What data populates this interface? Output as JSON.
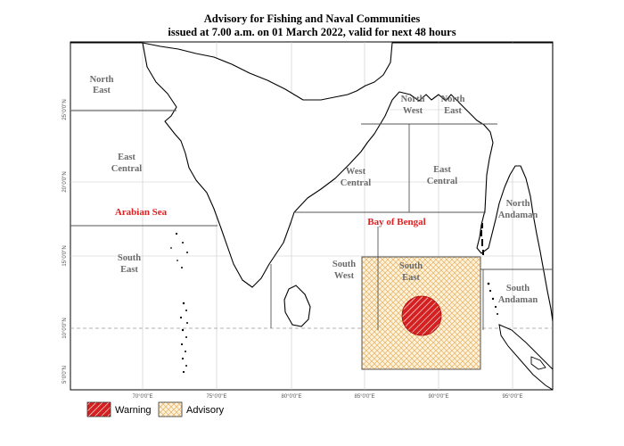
{
  "title": {
    "line1": "Advisory for Fishing and Naval Communities",
    "line2": "issued at 7.00 a.m. on 01 March  2022, valid for next 48 hours"
  },
  "regions": {
    "arabian_north_east": [
      "North",
      "East"
    ],
    "arabian_east_central": [
      "East",
      "Central"
    ],
    "arabian_south_east": [
      "South",
      "East"
    ],
    "bay_north_west": [
      "North",
      "West"
    ],
    "bay_north_east": [
      "North",
      "East"
    ],
    "bay_west_central": [
      "West",
      "Central"
    ],
    "bay_east_central": [
      "East",
      "Central"
    ],
    "bay_south_west": [
      "South",
      "West"
    ],
    "bay_south_east": [
      "South",
      "East"
    ],
    "north_andaman": [
      "North",
      "Andaman"
    ],
    "south_andaman": [
      "South",
      "Andaman"
    ]
  },
  "seas": {
    "arabian_sea": "Arabian Sea",
    "bay_of_bengal": "Bay of Bengal"
  },
  "axes": {
    "longitudes": [
      "70°0'0\"E",
      "75°0'0\"E",
      "80°0'0\"E",
      "85°0'0\"E",
      "90°0'0\"E",
      "95°0'0\"E"
    ],
    "latitudes": [
      "25°0'0\"N",
      "20°0'0\"N",
      "15°0'0\"N",
      "10°0'0\"N",
      "5°0'0\"N"
    ]
  },
  "legend": {
    "warning": "Warning",
    "advisory": "Advisory"
  },
  "colors": {
    "warning": "#d42020",
    "advisory_hatch": "#e8b060",
    "sea_label": "#e02020",
    "region_label": "#6b6b6b",
    "coast": "#000000",
    "boundary": "#555555"
  }
}
